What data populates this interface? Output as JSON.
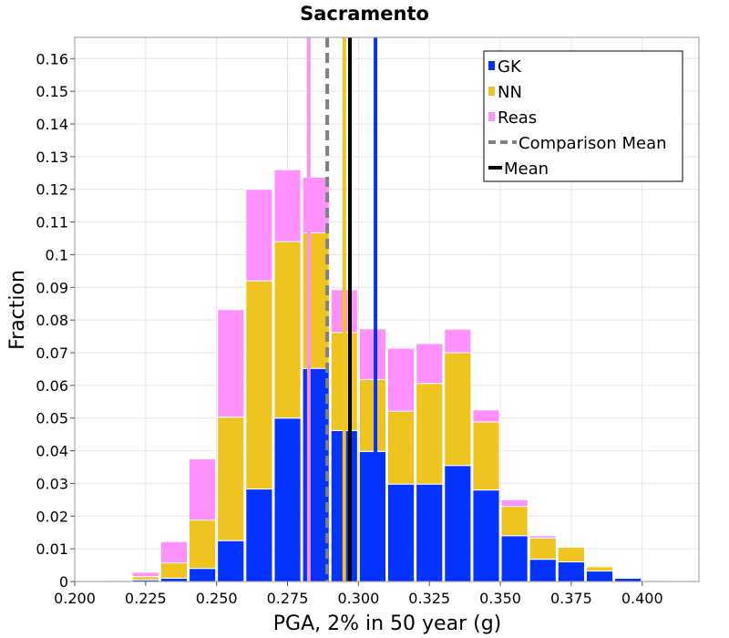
{
  "chart_data": {
    "type": "bar",
    "stacked": true,
    "title": "Sacramento",
    "xlabel": "PGA, 2% in 50 year (g)",
    "ylabel": "Fraction",
    "xlim": [
      0.2,
      0.42
    ],
    "ylim": [
      0,
      0.1665
    ],
    "grid": true,
    "legend_position": "top-right",
    "bin_width": 0.01,
    "x": [
      0.215,
      0.225,
      0.235,
      0.245,
      0.255,
      0.265,
      0.275,
      0.285,
      0.295,
      0.305,
      0.315,
      0.325,
      0.335,
      0.345,
      0.355,
      0.365,
      0.375,
      0.385,
      0.395,
      0.405
    ],
    "series": [
      {
        "name": "GK",
        "color": "#0433ff",
        "values": [
          0.0,
          0.0005,
          0.001,
          0.004,
          0.0125,
          0.0283,
          0.05,
          0.0652,
          0.0462,
          0.0398,
          0.0298,
          0.0298,
          0.0355,
          0.028,
          0.014,
          0.0068,
          0.006,
          0.0032,
          0.001,
          0.0
        ]
      },
      {
        "name": "NN",
        "color": "#f0c41e",
        "values": [
          0.0,
          0.001,
          0.0047,
          0.0148,
          0.0378,
          0.0637,
          0.054,
          0.0415,
          0.03,
          0.022,
          0.0223,
          0.0308,
          0.0345,
          0.0208,
          0.009,
          0.0065,
          0.0045,
          0.0013,
          0.0,
          0.0
        ]
      },
      {
        "name": "Reas",
        "color": "#ff91ff",
        "values": [
          0.0003,
          0.0013,
          0.0065,
          0.0187,
          0.0329,
          0.028,
          0.022,
          0.017,
          0.0131,
          0.0155,
          0.0193,
          0.0122,
          0.0072,
          0.0037,
          0.002,
          0.0007,
          0.0003,
          0.0,
          0.0002,
          0.0003
        ]
      }
    ],
    "comparison_mean": {
      "name": "Comparison Mean",
      "value": 0.289,
      "color": "#808080",
      "style": "dashed"
    },
    "mean": {
      "name": "Mean",
      "value": 0.297,
      "color": "#000000"
    },
    "series_means": [
      {
        "name": "GK",
        "value": 0.306,
        "color": "#0433ff"
      },
      {
        "name": "NN",
        "value": 0.295,
        "color": "#f0c41e"
      },
      {
        "name": "Reas",
        "value": 0.2825,
        "color": "#ff91ff"
      }
    ],
    "x_ticks": [
      {
        "value": 0.2,
        "label": "0.200"
      },
      {
        "value": 0.225,
        "label": "0.225"
      },
      {
        "value": 0.25,
        "label": "0.250"
      },
      {
        "value": 0.275,
        "label": "0.275"
      },
      {
        "value": 0.3,
        "label": "0.300"
      },
      {
        "value": 0.325,
        "label": "0.325"
      },
      {
        "value": 0.35,
        "label": "0.350"
      },
      {
        "value": 0.375,
        "label": "0.375"
      },
      {
        "value": 0.4,
        "label": "0.400"
      }
    ],
    "y_ticks": [
      {
        "value": 0,
        "label": "0"
      },
      {
        "value": 0.01,
        "label": "0.01"
      },
      {
        "value": 0.02,
        "label": "0.02"
      },
      {
        "value": 0.03,
        "label": "0.03"
      },
      {
        "value": 0.04,
        "label": "0.04"
      },
      {
        "value": 0.05,
        "label": "0.05"
      },
      {
        "value": 0.06,
        "label": "0.06"
      },
      {
        "value": 0.07,
        "label": "0.07"
      },
      {
        "value": 0.08,
        "label": "0.08"
      },
      {
        "value": 0.09,
        "label": "0.09"
      },
      {
        "value": 0.1,
        "label": "0.1"
      },
      {
        "value": 0.11,
        "label": "0.11"
      },
      {
        "value": 0.12,
        "label": "0.12"
      },
      {
        "value": 0.13,
        "label": "0.13"
      },
      {
        "value": 0.14,
        "label": "0.14"
      },
      {
        "value": 0.15,
        "label": "0.15"
      },
      {
        "value": 0.16,
        "label": "0.16"
      }
    ],
    "legend": [
      {
        "label": "GK",
        "color": "#0433ff",
        "kind": "box"
      },
      {
        "label": "NN",
        "color": "#f0c41e",
        "kind": "box"
      },
      {
        "label": "Reas",
        "color": "#ff91ff",
        "kind": "box"
      },
      {
        "label": "Comparison Mean",
        "color": "#808080",
        "kind": "dashed"
      },
      {
        "label": "Mean",
        "color": "#000000",
        "kind": "line"
      }
    ]
  }
}
